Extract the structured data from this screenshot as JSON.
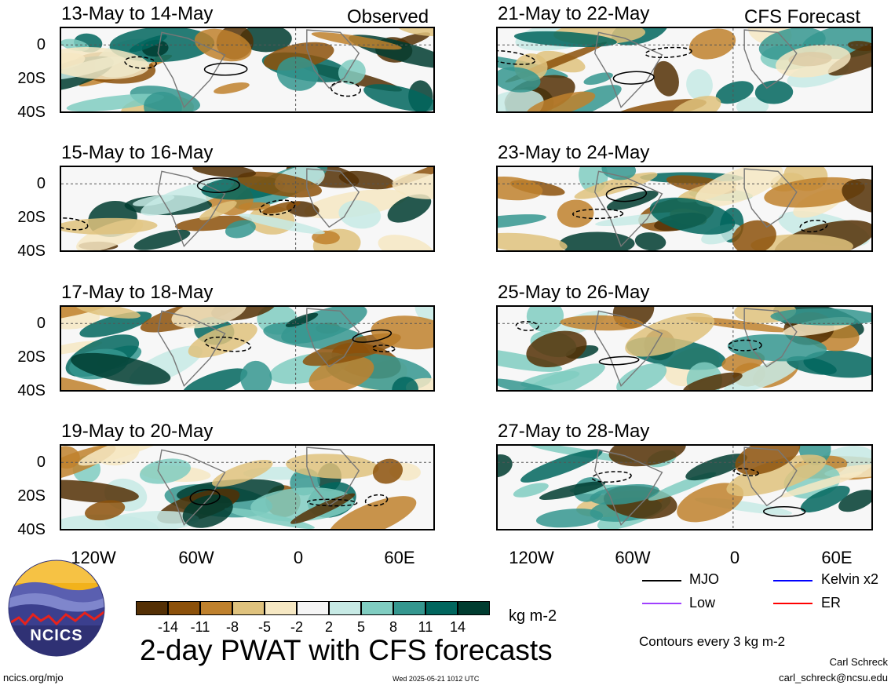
{
  "panels_left": [
    {
      "title": "13-May to 14-May",
      "tag": "Observed"
    },
    {
      "title": "15-May to 16-May",
      "tag": ""
    },
    {
      "title": "17-May to 18-May",
      "tag": ""
    },
    {
      "title": "19-May to 20-May",
      "tag": ""
    }
  ],
  "panels_right": [
    {
      "title": "21-May to 22-May",
      "tag": "CFS Forecast"
    },
    {
      "title": "23-May to 24-May",
      "tag": ""
    },
    {
      "title": "25-May to 26-May",
      "tag": ""
    },
    {
      "title": "27-May to 28-May",
      "tag": ""
    }
  ],
  "y_ticks": [
    "0",
    "20S",
    "40S"
  ],
  "x_ticks": [
    "120W",
    "60W",
    "0",
    "60E"
  ],
  "legend": {
    "mjo": "MJO",
    "kelvin": "Kelvin x2",
    "low": "Low",
    "er": "ER",
    "contours_note": "Contours every 3 kg m-2"
  },
  "colors": {
    "mjo": "#000000",
    "kelvin": "#0000ff",
    "low": "#a040ff",
    "er": "#ff0000",
    "scale": [
      "#543005",
      "#8c510a",
      "#bf812d",
      "#dfc27d",
      "#f6e8c3",
      "#f5f5f5",
      "#c7eae5",
      "#80cdc1",
      "#35978f",
      "#01665e",
      "#003c30"
    ]
  },
  "colorbar_labels": [
    "-14",
    "-11",
    "-8",
    "-5",
    "-2",
    "2",
    "5",
    "8",
    "11",
    "14"
  ],
  "colorbar_unit": "kg m-2",
  "main_title": "2-day PWAT with CFS forecasts",
  "logo_text": "NCICS",
  "footer": {
    "url": "ncics.org/mjo",
    "timestamp": "Wed 2025-05-21 1012 UTC",
    "author": "Carl Schreck",
    "email": "carl_schreck@ncsu.edu"
  },
  "chart_data": {
    "type": "heatmap",
    "variable": "2-day PWAT with CFS forecasts",
    "units": "kg m-2",
    "x_axis_ticks": [
      "120W",
      "60W",
      "0",
      "60E"
    ],
    "y_axis_ticks": [
      "0",
      "20S",
      "40S"
    ],
    "levels": [
      -14,
      -11,
      -8,
      -5,
      -2,
      2,
      5,
      8,
      11,
      14
    ],
    "contour_interval": 3,
    "contour_series": [
      "MJO",
      "Kelvin x2",
      "Low",
      "ER"
    ],
    "panels": [
      "13-May to 14-May",
      "15-May to 16-May",
      "17-May to 18-May",
      "19-May to 20-May",
      "21-May to 22-May",
      "23-May to 24-May",
      "25-May to 26-May",
      "27-May to 28-May"
    ]
  }
}
